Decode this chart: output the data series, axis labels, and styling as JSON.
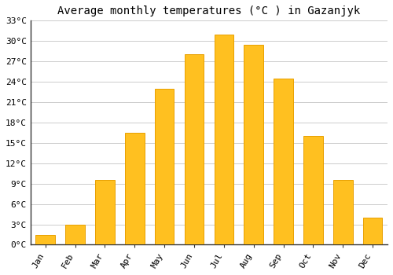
{
  "title": "Average monthly temperatures (°C ) in Gazanjyk",
  "months": [
    "Jan",
    "Feb",
    "Mar",
    "Apr",
    "May",
    "Jun",
    "Jul",
    "Aug",
    "Sep",
    "Oct",
    "Nov",
    "Dec"
  ],
  "temperatures": [
    1.5,
    3.0,
    9.5,
    16.5,
    23.0,
    28.0,
    31.0,
    29.5,
    24.5,
    16.0,
    9.5,
    4.0
  ],
  "bar_color": "#FFC020",
  "bar_edge_color": "#E8A000",
  "background_color": "#FFFFFF",
  "grid_color": "#CCCCCC",
  "ylim": [
    0,
    33
  ],
  "yticks": [
    0,
    3,
    6,
    9,
    12,
    15,
    18,
    21,
    24,
    27,
    30,
    33
  ],
  "ytick_labels": [
    "0°C",
    "3°C",
    "6°C",
    "9°C",
    "12°C",
    "15°C",
    "18°C",
    "21°C",
    "24°C",
    "27°C",
    "30°C",
    "33°C"
  ],
  "title_fontsize": 10,
  "tick_fontsize": 8,
  "font_family": "monospace",
  "bar_width": 0.65,
  "figsize": [
    5.0,
    3.5
  ],
  "dpi": 100
}
